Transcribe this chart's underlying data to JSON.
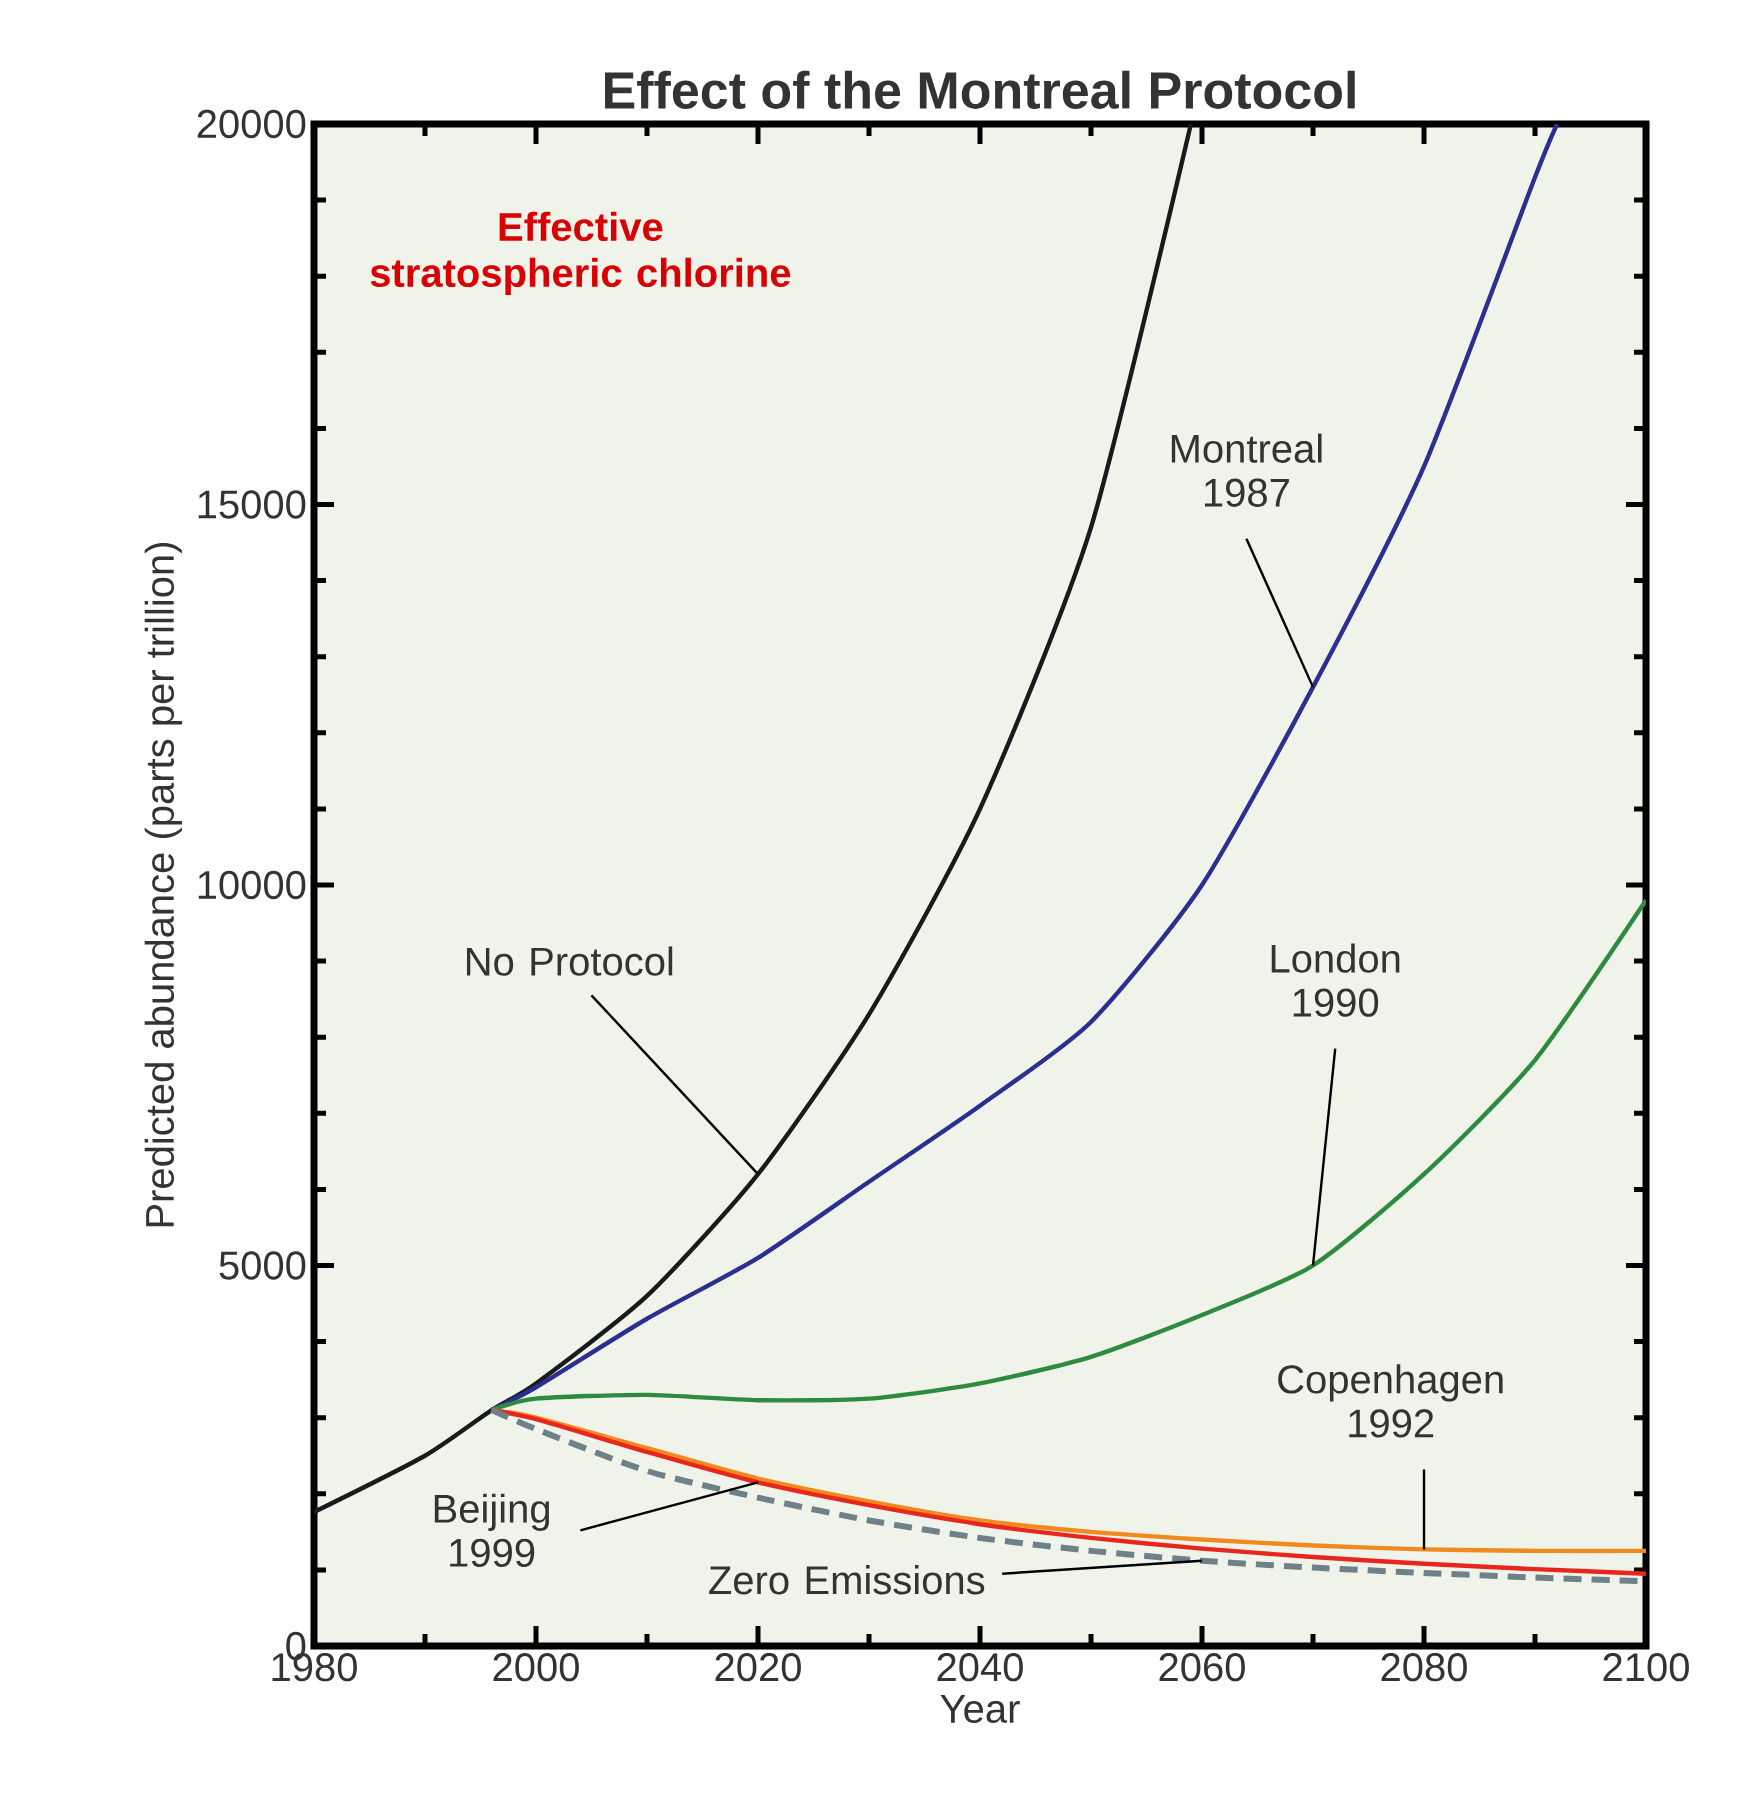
{
  "chart_data": {
    "type": "line",
    "title": "Effect of the Montreal Protocol",
    "subtitle": "Effective stratospheric chlorine",
    "xlabel": "Year",
    "ylabel": "Predicted abundance (parts per trillion)",
    "xlim": [
      1980,
      2100
    ],
    "ylim": [
      0,
      20000
    ],
    "xticks": [
      1980,
      2000,
      2020,
      2040,
      2060,
      2080,
      2100
    ],
    "yticks": [
      0,
      5000,
      10000,
      15000,
      20000
    ],
    "grid": false,
    "series": [
      {
        "color": "#1a1a1a",
        "x": [
          1980,
          1990,
          1996,
          2000,
          2010,
          2020,
          2030,
          2040,
          2050,
          2059
        ],
        "values": [
          1760,
          2500,
          3100,
          3450,
          4600,
          6200,
          8300,
          11000,
          14700,
          20000
        ]
      },
      {
        "color": "#2b2f8f",
        "x": [
          1996,
          2000,
          2010,
          2020,
          2030,
          2040,
          2050,
          2060,
          2070,
          2080,
          2090,
          2092
        ],
        "values": [
          3100,
          3400,
          4300,
          5100,
          6100,
          7100,
          8200,
          10000,
          12600,
          15500,
          19300,
          20000
        ]
      },
      {
        "color": "#2e8b3e",
        "x": [
          1996,
          2000,
          2010,
          2020,
          2030,
          2040,
          2050,
          2060,
          2070,
          2080,
          2090,
          2100
        ],
        "values": [
          3100,
          3250,
          3300,
          3230,
          3250,
          3450,
          3800,
          4350,
          5000,
          6200,
          7700,
          9800
        ]
      },
      {
        "color": "#f08a1e",
        "x": [
          1996,
          2000,
          2010,
          2020,
          2030,
          2040,
          2050,
          2060,
          2070,
          2080,
          2090,
          2100
        ],
        "values": [
          3100,
          3000,
          2600,
          2200,
          1900,
          1650,
          1500,
          1400,
          1320,
          1270,
          1250,
          1250
        ]
      },
      {
        "color": "#e8261c",
        "x": [
          1996,
          2000,
          2010,
          2020,
          2030,
          2040,
          2050,
          2060,
          2070,
          2080,
          2090,
          2100
        ],
        "values": [
          3100,
          2980,
          2550,
          2150,
          1850,
          1600,
          1420,
          1280,
          1170,
          1080,
          1010,
          950
        ]
      },
      {
        "color": "#6e8088",
        "line_style": "dashed",
        "x": [
          1996,
          2000,
          2010,
          2020,
          2030,
          2040,
          2050,
          2060,
          2070,
          2080,
          2090,
          2100
        ],
        "values": [
          3100,
          2850,
          2300,
          1950,
          1650,
          1420,
          1250,
          1120,
          1030,
          960,
          900,
          850
        ]
      }
    ],
    "annotations": [
      {
        "text": "No Protocol",
        "x": 2020,
        "y": 6200
      },
      {
        "text": "Montreal 1987",
        "x": 2070,
        "y": 12600
      },
      {
        "text": "London 1990",
        "x": 2070,
        "y": 5000
      },
      {
        "text": "Copenhagen 1992",
        "x": 2080,
        "y": 1270
      },
      {
        "text": "Beijing 1999",
        "x": 2020,
        "y": 2150
      },
      {
        "text": "Zero Emissions",
        "x": 2060,
        "y": 1120
      }
    ]
  }
}
